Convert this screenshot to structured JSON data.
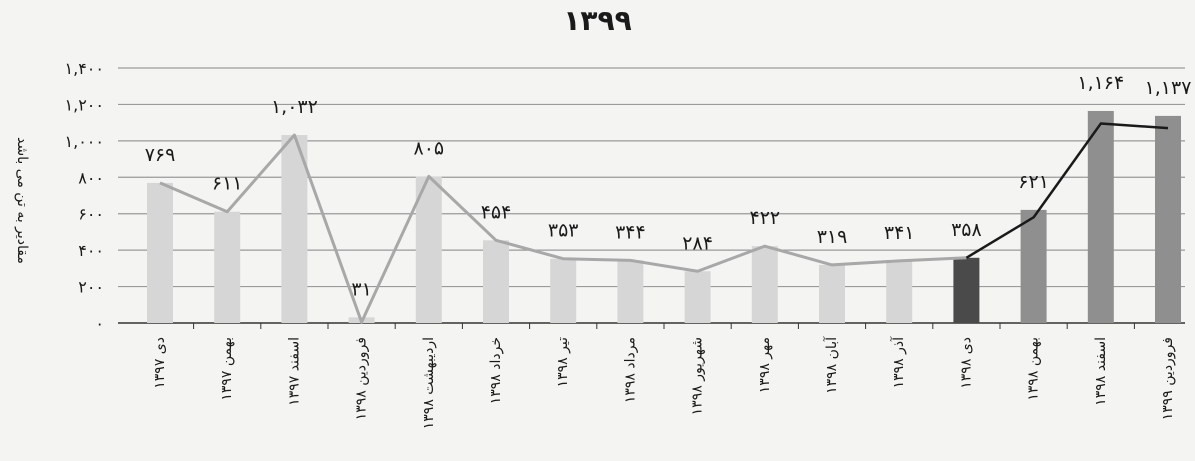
{
  "chart_data": {
    "type": "bar",
    "title": "۱۳۹۹",
    "xlabel": "",
    "ylabel": "مقادیر به تن می باشد",
    "ylim": [
      0,
      1400
    ],
    "y_ticks": [
      "٠",
      "۲۰۰",
      "۴۰۰",
      "۶۰۰",
      "۸۰۰",
      "۱,۰۰۰",
      "۱,۲۰۰",
      "۱,۴۰۰"
    ],
    "y_tick_values": [
      0,
      200,
      400,
      600,
      800,
      1000,
      1200,
      1400
    ],
    "grid": true,
    "legend": "none",
    "categories": [
      "دی ۱۳۹۷",
      "بهمن ۱۳۹۷",
      "اسفند ۱۳۹۷",
      "فروردین ۱۳۹۸",
      "اردیبهشت ۱۳۹۸",
      "خرداد ۱۳۹۸",
      "تیر ۱۳۹۸",
      "مرداد ۱۳۹۸",
      "شهریور ۱۳۹۸",
      "مهر ۱۳۹۸",
      "آبان ۱۳۹۸",
      "آذر ۱۳۹۸",
      "دی ۱۳۹۸",
      "بهمن ۱۳۹۸",
      "اسفند ۱۳۹۸",
      "فروردین ۱۳۹۹"
    ],
    "values": [
      769,
      611,
      1032,
      31,
      805,
      454,
      353,
      344,
      284,
      422,
      319,
      341,
      358,
      621,
      1164,
      1137
    ],
    "data_labels": [
      "۷۶۹",
      "۶۱۱",
      "۱,۰۳۲",
      "۳۱",
      "۸۰۵",
      "۴۵۴",
      "۳۵۳",
      "۳۴۴",
      "۲۸۴",
      "۴۲۲",
      "۳۱۹",
      "۳۴۱",
      "۳۵۸",
      "۶۲۱",
      "۱,۱۶۴",
      "۱,۱۳۷"
    ],
    "line_series": [
      769,
      611,
      1032,
      5,
      805,
      454,
      353,
      344,
      284,
      422,
      319,
      341,
      358,
      580,
      1095,
      1070
    ],
    "colors": {
      "bar_past": "#d6d6d6",
      "bar_recent": "#8f8f8f",
      "bar_current": "#4a4a4a",
      "line_past": "#a8a8a8",
      "line_recent": "#1a1a1a",
      "grid": "#9a9a9a",
      "axis": "#333333",
      "text": "#1a1a1a"
    }
  }
}
